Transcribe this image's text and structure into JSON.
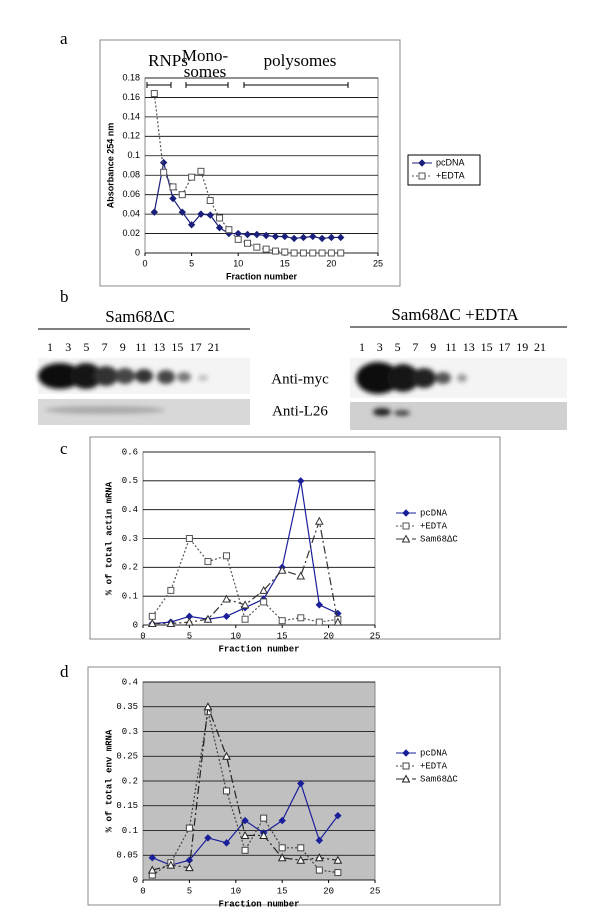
{
  "chart_data": [
    {
      "type": "line",
      "label": "a",
      "ylabel": "Absorbance 254 nm",
      "xlabel": "Fraction number",
      "annotations": [
        "RNPs",
        "Mono-",
        "somes",
        "polysomes"
      ],
      "x": [
        1,
        2,
        3,
        4,
        5,
        6,
        7,
        8,
        9,
        10,
        11,
        12,
        13,
        14,
        15,
        16,
        17,
        18,
        19,
        20,
        21
      ],
      "series": [
        {
          "name": "pcDNA",
          "color": "#1a1f7a",
          "marker": "diamond",
          "dash": "none",
          "values": [
            0.042,
            0.093,
            0.056,
            0.042,
            0.029,
            0.04,
            0.039,
            0.026,
            0.02,
            0.02,
            0.019,
            0.019,
            0.018,
            0.017,
            0.017,
            0.015,
            0.016,
            0.017,
            0.015,
            0.016,
            0.016
          ]
        },
        {
          "name": "+EDTA",
          "color": "#555555",
          "marker": "square",
          "dash": "2,2",
          "values": [
            0.164,
            0.083,
            0.068,
            0.06,
            0.078,
            0.084,
            0.054,
            0.036,
            0.024,
            0.014,
            0.01,
            0.006,
            0.004,
            0.002,
            0.001,
            0,
            0,
            0,
            0,
            0,
            0
          ]
        }
      ],
      "xlim": [
        0,
        25
      ],
      "xticks": [
        0,
        5,
        10,
        15,
        20,
        25
      ],
      "ylim": [
        0,
        0.18
      ],
      "yticks": [
        0,
        0.02,
        0.04,
        0.06,
        0.08,
        0.1,
        0.12,
        0.14,
        0.16,
        0.18
      ],
      "grid": true,
      "plot_background": "#ffffff"
    },
    {
      "type": "line",
      "label": "c",
      "ylabel": "% of total actin mRNA",
      "xlabel": "Fraction number",
      "x": [
        1,
        3,
        5,
        7,
        9,
        11,
        13,
        15,
        17,
        19,
        21
      ],
      "series": [
        {
          "name": "pcDNA",
          "color": "#1a1f9a",
          "marker": "diamond",
          "dash": "none",
          "values": [
            0.005,
            0.01,
            0.03,
            0.02,
            0.03,
            0.06,
            0.09,
            0.2,
            0.5,
            0.07,
            0.04
          ]
        },
        {
          "name": "+EDTA",
          "color": "#555555",
          "marker": "square",
          "dash": "2,2",
          "values": [
            0.03,
            0.12,
            0.3,
            0.22,
            0.24,
            0.02,
            0.08,
            0.015,
            0.025,
            0.01,
            0.02
          ]
        },
        {
          "name": "Sam68ΔC",
          "color": "#333333",
          "marker": "triangle",
          "dash": "8,3,2,3",
          "values": [
            0.005,
            0.005,
            0.01,
            0.02,
            0.09,
            0.07,
            0.12,
            0.19,
            0.17,
            0.36,
            0.01
          ]
        }
      ],
      "xlim": [
        0,
        25
      ],
      "xticks": [
        0,
        5,
        10,
        15,
        20,
        25
      ],
      "ylim": [
        0,
        0.6
      ],
      "yticks": [
        0,
        0.1,
        0.2,
        0.3,
        0.4,
        0.5,
        0.6
      ],
      "grid": true,
      "plot_background": "#ffffff"
    },
    {
      "type": "line",
      "label": "d",
      "ylabel": "% of total env mRNA",
      "xlabel": "Fraction number",
      "x": [
        1,
        3,
        5,
        7,
        9,
        11,
        13,
        15,
        17,
        19,
        21
      ],
      "series": [
        {
          "name": "pcDNA",
          "color": "#1a1f9a",
          "marker": "diamond",
          "dash": "none",
          "values": [
            0.045,
            0.03,
            0.04,
            0.085,
            0.075,
            0.12,
            0.095,
            0.12,
            0.195,
            0.08,
            0.13
          ]
        },
        {
          "name": "+EDTA",
          "color": "#444444",
          "marker": "square",
          "dash": "2,2",
          "values": [
            0.01,
            0.035,
            0.105,
            0.34,
            0.18,
            0.06,
            0.125,
            0.065,
            0.065,
            0.02,
            0.015
          ]
        },
        {
          "name": "Sam68ΔC",
          "color": "#222222",
          "marker": "triangle",
          "dash": "8,3,2,3",
          "values": [
            0.02,
            0.03,
            0.025,
            0.35,
            0.25,
            0.09,
            0.09,
            0.045,
            0.04,
            0.045,
            0.04
          ]
        }
      ],
      "xlim": [
        0,
        25
      ],
      "xticks": [
        0,
        5,
        10,
        15,
        20,
        25
      ],
      "ylim": [
        0,
        0.4
      ],
      "yticks": [
        0,
        0.05,
        0.1,
        0.15,
        0.2,
        0.25,
        0.3,
        0.35,
        0.4
      ],
      "grid": true,
      "plot_background": "#c0c0c0"
    }
  ],
  "blot": {
    "label": "b",
    "left_title": "Sam68ΔC",
    "right_title": "Sam68ΔC +EDTA",
    "left_lanes": [
      1,
      3,
      5,
      7,
      9,
      11,
      13,
      15,
      17,
      21
    ],
    "right_lanes": [
      1,
      3,
      5,
      7,
      9,
      11,
      13,
      15,
      17,
      19,
      21
    ],
    "antibodies": [
      "Anti-myc",
      "Anti-L26"
    ]
  }
}
